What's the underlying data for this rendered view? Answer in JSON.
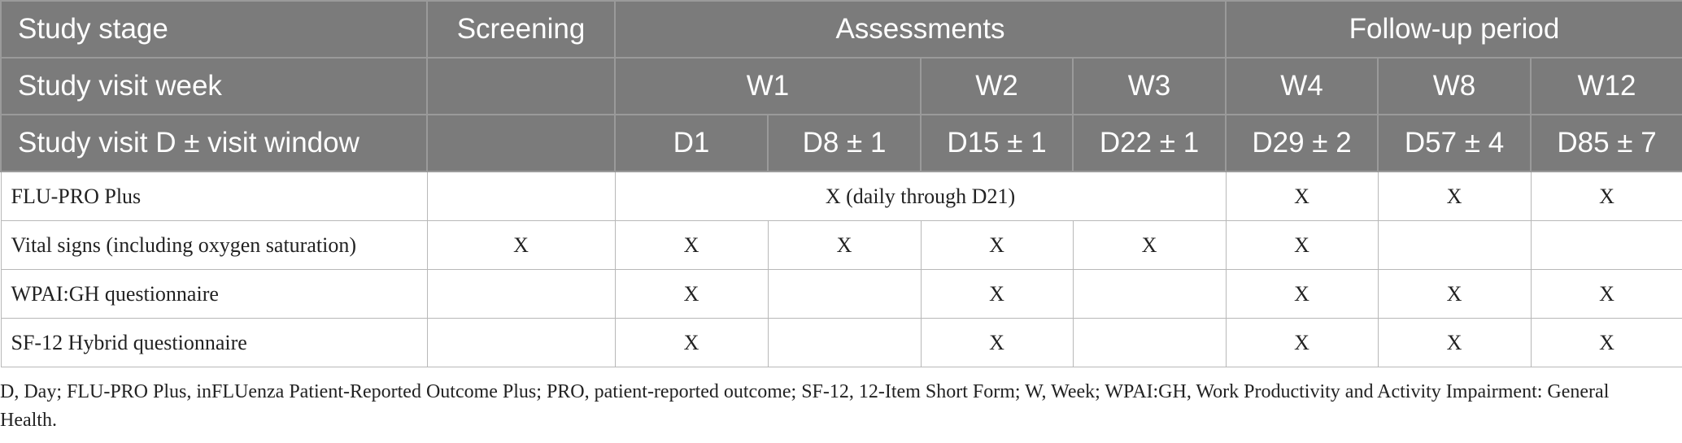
{
  "table": {
    "header": {
      "stage_label": "Study stage",
      "screening": "Screening",
      "assessments": "Assessments",
      "follow_up": "Follow-up period",
      "week_label": "Study visit week",
      "weeks": [
        "W1",
        "W2",
        "W3",
        "W4",
        "W8",
        "W12"
      ],
      "day_label": "Study visit D ± visit window",
      "days": [
        "D1",
        "D8 ± 1",
        "D15 ± 1",
        "D22 ± 1",
        "D29 ± 2",
        "D57 ± 4",
        "D85 ± 7"
      ]
    },
    "rows": [
      {
        "label": "FLU-PRO Plus",
        "assessment_span": "X (daily through D21)",
        "w4": "X",
        "w8": "X",
        "w12": "X"
      },
      {
        "label": "Vital signs (including oxygen saturation)",
        "screening": "X",
        "d1": "X",
        "d8": "X",
        "d15": "X",
        "d22": "X",
        "w4": "X",
        "w8": "",
        "w12": ""
      },
      {
        "label": "WPAI:GH questionnaire",
        "screening": "",
        "d1": "X",
        "d8": "",
        "d15": "X",
        "d22": "",
        "w4": "X",
        "w8": "X",
        "w12": "X"
      },
      {
        "label": "SF-12 Hybrid questionnaire",
        "screening": "",
        "d1": "X",
        "d8": "",
        "d15": "X",
        "d22": "",
        "w4": "X",
        "w8": "X",
        "w12": "X"
      }
    ]
  },
  "footnote": "D, Day; FLU-PRO Plus, inFLUenza Patient-Reported Outcome Plus; PRO, patient-reported outcome; SF-12, 12-Item Short Form; W, Week; WPAI:GH, Work Productivity and Activity Impairment: General Health."
}
